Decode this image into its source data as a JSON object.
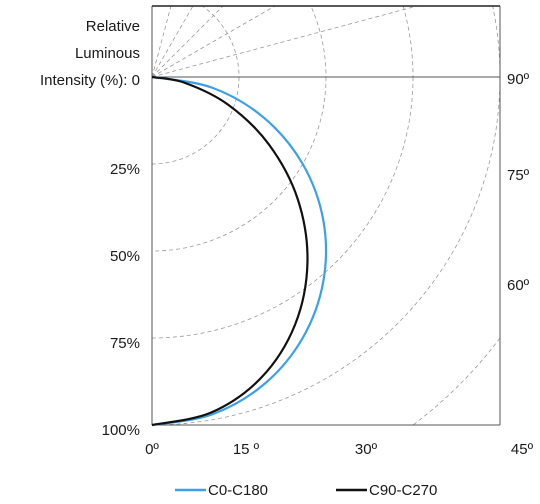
{
  "chart_data": {
    "type": "polar-line",
    "y_axis_title": [
      "Relative",
      "Luminous",
      "Intensity (%): 0"
    ],
    "radial_ticks": [
      "25%",
      "50%",
      "75%",
      "100%"
    ],
    "angle_labels_bottom": [
      "0º",
      "15 º",
      "30º",
      "45º"
    ],
    "angle_labels_right": [
      "90º",
      "75º",
      "60º"
    ],
    "grid": true,
    "legend_position": "bottom",
    "series": [
      {
        "name": "C0-C180",
        "color": "#3aa0e8",
        "angles_deg": [
          0,
          10,
          20,
          30,
          40,
          50,
          60,
          70,
          80,
          90
        ],
        "values_pct": [
          100,
          98.5,
          94,
          86.6,
          76.6,
          64.3,
          50,
          34.2,
          17.4,
          0
        ]
      },
      {
        "name": "C90-C270",
        "color": "#111111",
        "angles_deg": [
          0,
          10,
          20,
          30,
          40,
          50,
          60,
          70,
          80,
          90
        ],
        "values_pct": [
          100,
          97.9,
          91.9,
          82.2,
          69.5,
          54.7,
          38.8,
          23.3,
          9.5,
          0
        ]
      }
    ]
  }
}
